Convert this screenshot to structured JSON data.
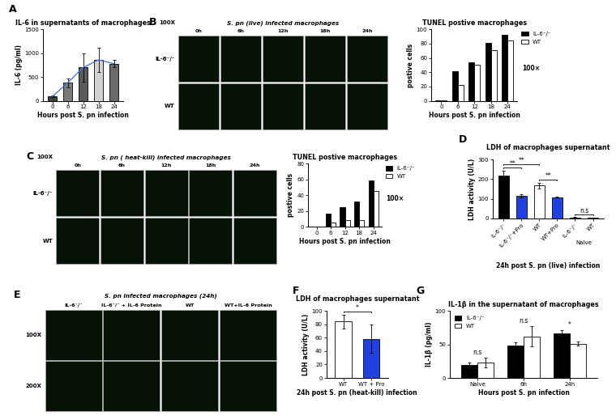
{
  "chart_data": [
    {
      "panel": "A",
      "type": "bar",
      "title": "IL-6 in supernatants of macrophages",
      "x_label": "Hours post S. pn infection",
      "y_label": "IL-6 (pg/ml)",
      "categories": [
        "0",
        "6",
        "12",
        "18",
        "24"
      ],
      "series": [
        {
          "type": "bar",
          "colors": [
            "#404040",
            "#7a7a7a",
            "#5a5a5a",
            "#d2d2d2",
            "#6a6a6a"
          ],
          "values": [
            90,
            380,
            700,
            860,
            780
          ],
          "errors": [
            15,
            90,
            300,
            250,
            80
          ]
        },
        {
          "type": "line",
          "color": "#3f6fd8",
          "values": [
            90,
            380,
            700,
            860,
            780
          ]
        }
      ],
      "ylim": [
        0,
        1500
      ],
      "yticks": [
        0,
        500,
        1000,
        1500
      ]
    },
    {
      "type": "bar",
      "title": "TUNEL postive macrophages",
      "x_label": "Hours post S. pn infection",
      "y_label": "postive cells",
      "categories": [
        "0",
        "6",
        "12",
        "18",
        "24"
      ],
      "series": [
        {
          "name": "IL-6⁻/⁻",
          "color": "#000000",
          "values": [
            1,
            42,
            54,
            81,
            92
          ]
        },
        {
          "name": "WT",
          "color": "#ffffff",
          "values": [
            1,
            22,
            50,
            71,
            84
          ]
        }
      ],
      "annotation": "100×",
      "legend": "upper left",
      "ylim": [
        0,
        100
      ],
      "yticks": [
        0,
        20,
        40,
        60,
        80,
        100
      ]
    },
    {
      "type": "bar",
      "title": "TUNEL postive macrophages",
      "x_label": "Hours post S. pn infection",
      "y_label": "postive cells",
      "categories": [
        "0",
        "6",
        "12",
        "18",
        "24"
      ],
      "series": [
        {
          "name": "IL-6⁻/⁻",
          "color": "#000000",
          "values": [
            0,
            17,
            25,
            32,
            59
          ]
        },
        {
          "name": "WT",
          "color": "#ffffff",
          "values": [
            0,
            5,
            9,
            9,
            45
          ]
        }
      ],
      "annotation": "100×",
      "legend": "upper left",
      "ylim": [
        0,
        80
      ],
      "yticks": [
        0,
        20,
        40,
        60,
        80
      ]
    },
    {
      "panel": "D",
      "type": "bar",
      "title": "LDH of macrophages supernatant",
      "x_label": "24h post S. pn (live) infection",
      "y_label": "LDH activity (U/L)",
      "categories": [
        "IL-6⁻/⁻",
        "IL-6⁻/⁻+Pro",
        "WT",
        "WT+Pro",
        "IL-6⁻/⁻",
        "WT"
      ],
      "series": [
        {
          "colors": [
            "#000000",
            "#2040e0",
            "#ffffff",
            "#2040e0",
            "#000000",
            "#ffffff"
          ],
          "values": [
            218,
            115,
            168,
            108,
            5,
            3
          ],
          "errors": [
            25,
            10,
            15,
            3,
            2,
            2
          ]
        }
      ],
      "comparisons": [
        {
          "between": [
            0,
            1
          ],
          "label": "**"
        },
        {
          "between": [
            0,
            2
          ],
          "label": "**"
        },
        {
          "between": [
            2,
            3
          ],
          "label": "**"
        },
        {
          "between": [
            4,
            5
          ],
          "label": "n.s"
        }
      ],
      "groups": [
        {
          "between": [
            4,
            5
          ],
          "label": "Naive"
        }
      ],
      "ylim": [
        0,
        300
      ],
      "yticks": [
        0,
        100,
        200,
        300
      ]
    },
    {
      "panel": "F",
      "type": "bar",
      "title": "LDH of macrophages supernatant",
      "x_label": "24h post S. pn (heat-kill) infection",
      "y_label": "LDH activity (U/L)",
      "categories": [
        "WT",
        "WT + Pro"
      ],
      "series": [
        {
          "colors": [
            "#ffffff",
            "#2040e0"
          ],
          "values": [
            84,
            58
          ],
          "errors": [
            10,
            21
          ]
        }
      ],
      "comparisons": [
        {
          "between": [
            0,
            1
          ],
          "label": "*"
        }
      ],
      "ylim": [
        0,
        100
      ],
      "yticks": [
        0,
        20,
        40,
        60,
        80,
        100
      ]
    },
    {
      "panel": "G",
      "type": "bar",
      "title": "IL-1β in the supernatant of macrophages",
      "x_label": "Hours post S. pn infection",
      "y_label": "IL-1β (pg/ml)",
      "categories": [
        "Naive",
        "6h",
        "24h"
      ],
      "series": [
        {
          "name": "IL-6⁻/⁻",
          "color": "#000000",
          "values": [
            19,
            48,
            66
          ],
          "errors": [
            4,
            5,
            5
          ]
        },
        {
          "name": "WT",
          "color": "#ffffff",
          "values": [
            23,
            62,
            51
          ],
          "errors": [
            7,
            15,
            3
          ]
        }
      ],
      "annotations": [
        "n.s",
        "n.s",
        "*"
      ],
      "legend": "upper left",
      "ylim": [
        0,
        100
      ],
      "yticks": [
        0,
        50,
        100
      ]
    }
  ],
  "image_panels": [
    {
      "panel": "B",
      "title": "S. pn (live) infected macrophages",
      "magnification": "100X",
      "rows": [
        "IL-6⁻/⁻",
        "WT"
      ],
      "columns": [
        "0h",
        "6h",
        "12h",
        "18h",
        "24h"
      ]
    },
    {
      "panel": "C",
      "title": "S. pn ( heat-kill) infected macrophages",
      "magnification": "100X",
      "rows": [
        "IL-6⁻/⁻",
        "WT"
      ],
      "columns": [
        "0h",
        "6h",
        "12h",
        "18h",
        "24h"
      ]
    },
    {
      "panel": "E",
      "title": "S. pn infected macrophages (24h)",
      "rows": [
        "100X",
        "200X"
      ],
      "columns": [
        "IL-6⁻/⁻",
        "IL-6⁻/⁻ + IL-6 Protein",
        "WT",
        "WT+IL-6 Protein"
      ]
    }
  ]
}
